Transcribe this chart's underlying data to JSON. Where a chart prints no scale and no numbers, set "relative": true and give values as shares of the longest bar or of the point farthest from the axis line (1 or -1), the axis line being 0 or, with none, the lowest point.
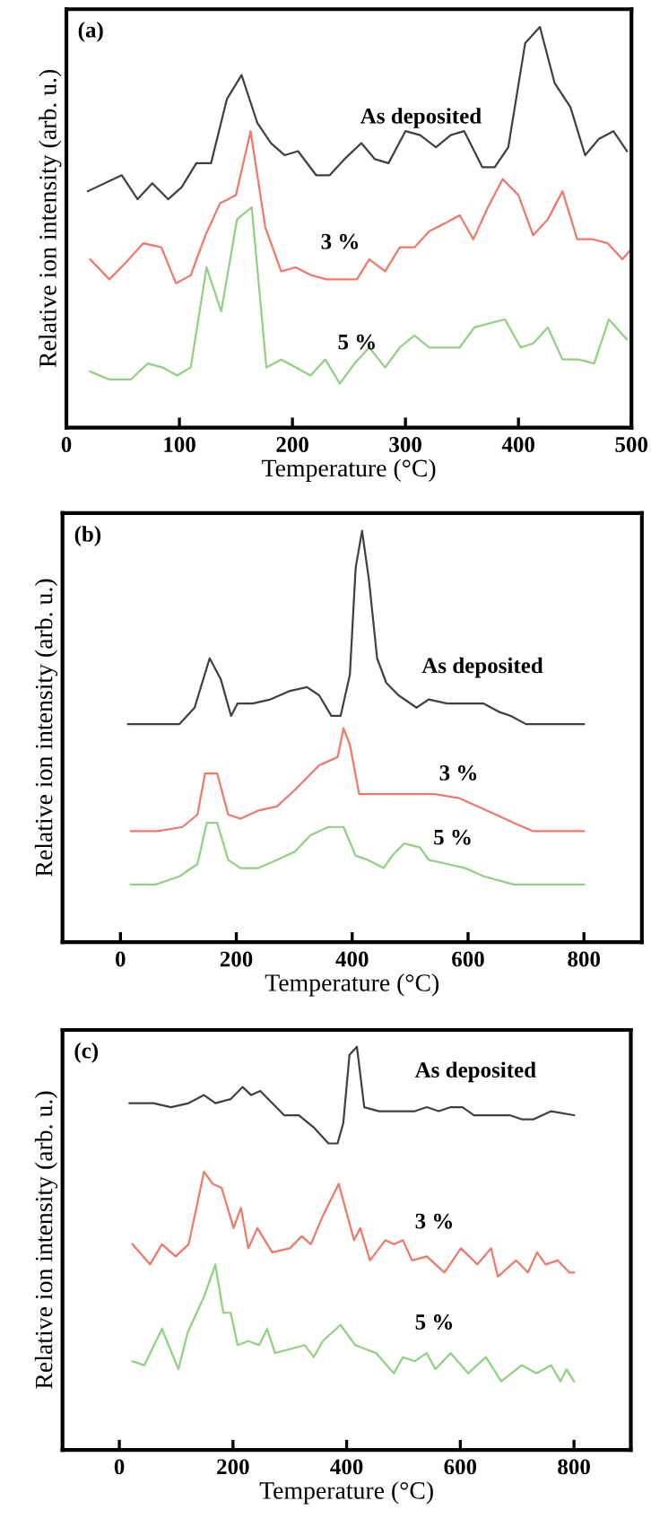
{
  "chart_data": [
    {
      "type": "line",
      "title": "(a)",
      "xlabel": "Temperature (°C)",
      "ylabel": "Relative ion intensity (arb. u.)",
      "relative": true,
      "xlim": [
        0,
        500
      ],
      "xticks": [
        0,
        100,
        200,
        300,
        400,
        500
      ],
      "tick_labels": "x",
      "grid": false,
      "legend": false,
      "series": [
        {
          "name": "As deposited",
          "color": "#404040",
          "x": [
            19,
            49,
            63,
            76,
            90,
            102,
            115,
            128,
            142,
            155,
            169,
            181,
            193,
            205,
            221,
            233,
            246,
            261,
            273,
            285,
            300,
            313,
            327,
            340,
            352,
            368,
            379,
            391,
            406,
            419,
            432,
            446,
            459,
            471,
            484,
            496
          ],
          "values": [
            0.59,
            0.63,
            0.57,
            0.61,
            0.57,
            0.6,
            0.66,
            0.66,
            0.82,
            0.88,
            0.76,
            0.71,
            0.68,
            0.69,
            0.63,
            0.63,
            0.67,
            0.71,
            0.67,
            0.66,
            0.74,
            0.73,
            0.7,
            0.73,
            0.74,
            0.65,
            0.65,
            0.7,
            0.96,
            1.0,
            0.86,
            0.8,
            0.68,
            0.72,
            0.74,
            0.69
          ]
        },
        {
          "name": "3 %",
          "color": "#f07868",
          "x": [
            21,
            38,
            52,
            68,
            84,
            97,
            110,
            123,
            136,
            150,
            163,
            176,
            190,
            203,
            217,
            230,
            243,
            257,
            268,
            282,
            295,
            308,
            321,
            335,
            348,
            360,
            373,
            386,
            400,
            413,
            426,
            439,
            452,
            466,
            479,
            492,
            498
          ],
          "values": [
            0.42,
            0.37,
            0.41,
            0.46,
            0.45,
            0.36,
            0.38,
            0.48,
            0.56,
            0.58,
            0.74,
            0.5,
            0.39,
            0.4,
            0.38,
            0.37,
            0.37,
            0.37,
            0.42,
            0.39,
            0.45,
            0.45,
            0.49,
            0.51,
            0.53,
            0.47,
            0.55,
            0.62,
            0.58,
            0.48,
            0.52,
            0.59,
            0.47,
            0.47,
            0.46,
            0.42,
            0.44
          ]
        },
        {
          "name": "5 %",
          "color": "#90d080",
          "x": [
            21,
            38,
            57,
            72,
            85,
            98,
            110,
            124,
            137,
            151,
            164,
            177,
            190,
            203,
            216,
            229,
            242,
            255,
            268,
            282,
            295,
            308,
            321,
            333,
            348,
            361,
            374,
            388,
            402,
            413,
            426,
            439,
            453,
            467,
            480,
            496
          ],
          "values": [
            0.14,
            0.12,
            0.12,
            0.16,
            0.15,
            0.13,
            0.15,
            0.4,
            0.29,
            0.52,
            0.55,
            0.15,
            0.17,
            0.15,
            0.13,
            0.17,
            0.11,
            0.16,
            0.2,
            0.15,
            0.2,
            0.23,
            0.2,
            0.2,
            0.2,
            0.25,
            0.26,
            0.27,
            0.2,
            0.21,
            0.25,
            0.17,
            0.17,
            0.16,
            0.27,
            0.22
          ]
        }
      ]
    },
    {
      "type": "line",
      "title": "(b)",
      "xlabel": "Temperature (°C)",
      "ylabel": "Relative ion intensity (arb. u.)",
      "relative": true,
      "xlim": [
        -100,
        900
      ],
      "xticks": [
        0,
        200,
        400,
        600,
        800
      ],
      "tick_labels": "x",
      "grid": false,
      "legend": false,
      "series": [
        {
          "name": "As deposited",
          "color": "#404040",
          "x": [
            13,
            60,
            102,
            128,
            154,
            173,
            191,
            202,
            228,
            259,
            291,
            322,
            343,
            364,
            380,
            396,
            406,
            417,
            429,
            443,
            459,
            480,
            511,
            532,
            564,
            595,
            627,
            653,
            674,
            700,
            732,
            769,
            800
          ],
          "values": [
            0.53,
            0.53,
            0.53,
            0.57,
            0.69,
            0.64,
            0.55,
            0.58,
            0.58,
            0.59,
            0.61,
            0.62,
            0.6,
            0.55,
            0.55,
            0.65,
            0.91,
            1.0,
            0.88,
            0.69,
            0.63,
            0.6,
            0.57,
            0.59,
            0.58,
            0.58,
            0.58,
            0.56,
            0.55,
            0.53,
            0.53,
            0.53,
            0.53
          ]
        },
        {
          "name": "3 %",
          "color": "#f07868",
          "x": [
            18,
            65,
            107,
            133,
            146,
            167,
            186,
            207,
            238,
            270,
            301,
            322,
            343,
            359,
            375,
            385,
            396,
            412,
            438,
            469,
            511,
            543,
            585,
            616,
            648,
            679,
            711,
            763,
            800
          ],
          "values": [
            0.27,
            0.27,
            0.28,
            0.31,
            0.41,
            0.41,
            0.31,
            0.3,
            0.32,
            0.33,
            0.37,
            0.4,
            0.43,
            0.44,
            0.45,
            0.52,
            0.48,
            0.36,
            0.36,
            0.36,
            0.36,
            0.36,
            0.35,
            0.33,
            0.31,
            0.29,
            0.27,
            0.27,
            0.27
          ]
        },
        {
          "name": "5 %",
          "color": "#90d080",
          "x": [
            18,
            60,
            102,
            133,
            149,
            167,
            186,
            207,
            238,
            270,
            301,
            328,
            359,
            385,
            406,
            427,
            454,
            469,
            490,
            517,
            532,
            564,
            595,
            627,
            679,
            732,
            800
          ],
          "values": [
            0.14,
            0.14,
            0.16,
            0.19,
            0.29,
            0.29,
            0.2,
            0.18,
            0.18,
            0.2,
            0.22,
            0.26,
            0.28,
            0.28,
            0.21,
            0.2,
            0.18,
            0.21,
            0.24,
            0.23,
            0.2,
            0.19,
            0.18,
            0.16,
            0.14,
            0.14,
            0.14
          ]
        }
      ]
    },
    {
      "type": "line",
      "title": "(c)",
      "xlabel": "Temperature (°C)",
      "ylabel": "Relative ion intensity (arb. u.)",
      "relative": true,
      "xlim": [
        -100,
        900
      ],
      "xticks": [
        0,
        200,
        400,
        600,
        800
      ],
      "tick_labels": "x",
      "grid": false,
      "legend": false,
      "series": [
        {
          "name": "As deposited",
          "color": "#404040",
          "x": [
            18,
            60,
            91,
            122,
            149,
            169,
            196,
            217,
            232,
            248,
            269,
            290,
            316,
            342,
            368,
            384,
            394,
            405,
            418,
            431,
            457,
            488,
            520,
            541,
            562,
            583,
            604,
            624,
            656,
            687,
            708,
            729,
            760,
            800
          ],
          "values": [
            0.86,
            0.86,
            0.85,
            0.86,
            0.88,
            0.86,
            0.87,
            0.9,
            0.88,
            0.89,
            0.86,
            0.83,
            0.83,
            0.8,
            0.76,
            0.76,
            0.81,
            0.98,
            1.0,
            0.85,
            0.84,
            0.84,
            0.84,
            0.85,
            0.84,
            0.85,
            0.85,
            0.83,
            0.83,
            0.83,
            0.82,
            0.82,
            0.84,
            0.83
          ]
        },
        {
          "name": "3 %",
          "color": "#f07868",
          "x": [
            23,
            54,
            75,
            99,
            122,
            149,
            164,
            180,
            201,
            214,
            227,
            243,
            269,
            300,
            321,
            337,
            358,
            386,
            413,
            424,
            441,
            468,
            483,
            499,
            515,
            541,
            572,
            601,
            630,
            654,
            666,
            698,
            719,
            735,
            750,
            771,
            792,
            800
          ],
          "values": [
            0.51,
            0.46,
            0.51,
            0.48,
            0.51,
            0.69,
            0.66,
            0.65,
            0.55,
            0.6,
            0.5,
            0.55,
            0.49,
            0.5,
            0.53,
            0.51,
            0.58,
            0.66,
            0.52,
            0.55,
            0.47,
            0.52,
            0.51,
            0.52,
            0.47,
            0.48,
            0.44,
            0.5,
            0.46,
            0.5,
            0.43,
            0.47,
            0.44,
            0.49,
            0.46,
            0.47,
            0.44,
            0.44
          ]
        },
        {
          "name": "5 %",
          "color": "#90d080",
          "x": [
            23,
            44,
            75,
            104,
            120,
            149,
            169,
            183,
            196,
            208,
            227,
            246,
            260,
            274,
            300,
            326,
            342,
            358,
            389,
            415,
            452,
            483,
            499,
            520,
            541,
            556,
            583,
            614,
            645,
            672,
            708,
            734,
            760,
            776,
            787,
            800
          ],
          "values": [
            0.22,
            0.21,
            0.3,
            0.2,
            0.29,
            0.38,
            0.46,
            0.34,
            0.34,
            0.26,
            0.27,
            0.26,
            0.3,
            0.24,
            0.25,
            0.26,
            0.23,
            0.27,
            0.31,
            0.26,
            0.24,
            0.19,
            0.23,
            0.22,
            0.24,
            0.2,
            0.24,
            0.19,
            0.23,
            0.17,
            0.21,
            0.19,
            0.21,
            0.17,
            0.2,
            0.17
          ]
        }
      ]
    }
  ]
}
